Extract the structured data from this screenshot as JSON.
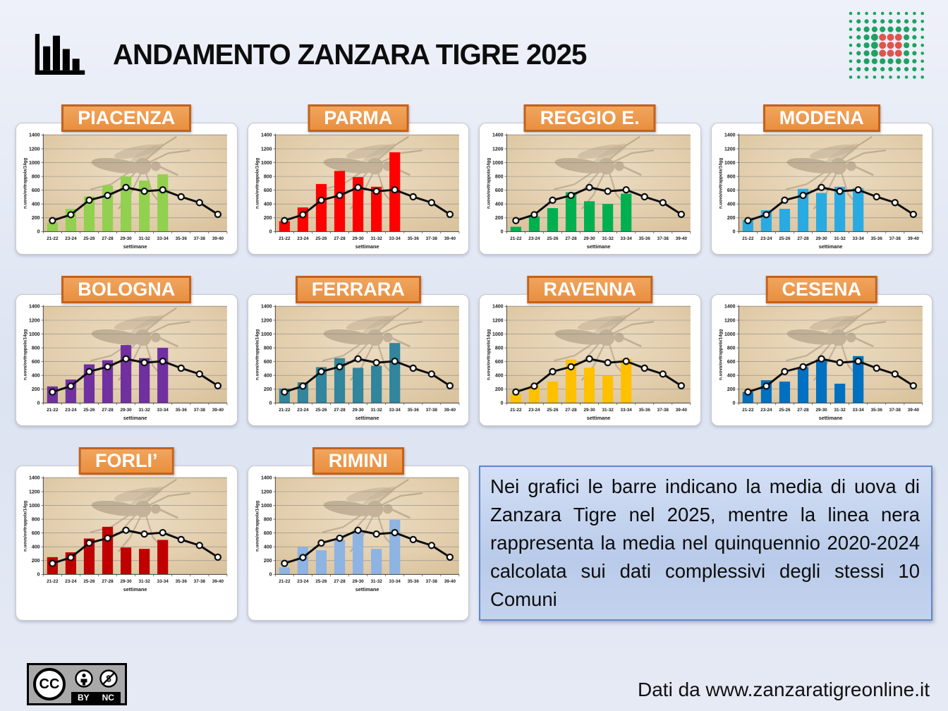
{
  "header": {
    "title": "ANDAMENTO ZANZARA TIGRE 2025"
  },
  "logo": {
    "green": "#1ea263",
    "red": "#e2534a",
    "cols": 10,
    "rows": 9
  },
  "note_box": {
    "text": "Nei grafici le barre indicano la media di uova di Zanzara Tigre nel 2025, mentre la linea nera rappresenta la media nel quinquennio 2020-2024 calcolata sui dati complessivi degli stessi 10 Comuni"
  },
  "footer": {
    "source": "Dati da www.zanzaratigreonline.it",
    "license": {
      "name": "CC BY-NC",
      "cc_label": "CC",
      "by_label": "BY",
      "nc_label": "NC"
    }
  },
  "chart_data": {
    "type": "bar",
    "categories": [
      "21-22",
      "23-24",
      "25-26",
      "27-28",
      "29-30",
      "31-32",
      "33-34",
      "35-36",
      "37-38",
      "39-40"
    ],
    "xlabel": "settimane",
    "ylabel": "n.uova/ovitrappola/14gg",
    "ylim": [
      0,
      1400
    ],
    "ytick_step": 200,
    "grid": true,
    "line_series": {
      "name": "media quinquennio 2020-2024 (10 Comuni)",
      "color": "#0d0d0d",
      "values": [
        160,
        245,
        455,
        525,
        640,
        585,
        605,
        505,
        420,
        250
      ]
    },
    "bar_series_name": "media uova Zanzara Tigre 2025",
    "charts": [
      {
        "city": "PIACENZA",
        "color": "#92D050",
        "values": [
          130,
          330,
          510,
          670,
          800,
          740,
          830,
          null,
          null,
          null
        ]
      },
      {
        "city": "PARMA",
        "color": "#FF0000",
        "values": [
          150,
          350,
          690,
          880,
          790,
          650,
          1150,
          null,
          null,
          null
        ]
      },
      {
        "city": "REGGIO E.",
        "color": "#00B050",
        "values": [
          70,
          220,
          340,
          570,
          440,
          400,
          550,
          null,
          null,
          null
        ]
      },
      {
        "city": "MODENA",
        "color": "#29ABE2",
        "values": [
          170,
          310,
          330,
          620,
          560,
          650,
          630,
          null,
          null,
          null
        ]
      },
      {
        "city": "BOLOGNA",
        "color": "#7030A0",
        "values": [
          240,
          340,
          560,
          620,
          840,
          650,
          800,
          null,
          null,
          null
        ]
      },
      {
        "city": "FERRARA",
        "color": "#31859C",
        "values": [
          210,
          300,
          520,
          650,
          510,
          540,
          870,
          null,
          null,
          null
        ]
      },
      {
        "city": "RAVENNA",
        "color": "#FFC000",
        "values": [
          130,
          250,
          310,
          630,
          510,
          390,
          640,
          null,
          null,
          null
        ]
      },
      {
        "city": "CESENA",
        "color": "#0070C0",
        "values": [
          160,
          330,
          310,
          520,
          630,
          280,
          680,
          null,
          null,
          null
        ]
      },
      {
        "city": "FORLI’",
        "color": "#C00000",
        "values": [
          250,
          320,
          520,
          690,
          390,
          370,
          500,
          null,
          null,
          null
        ]
      },
      {
        "city": "RIMINI",
        "color": "#8DB4E2",
        "values": [
          100,
          400,
          350,
          500,
          610,
          370,
          790,
          null,
          null,
          null
        ]
      }
    ]
  }
}
